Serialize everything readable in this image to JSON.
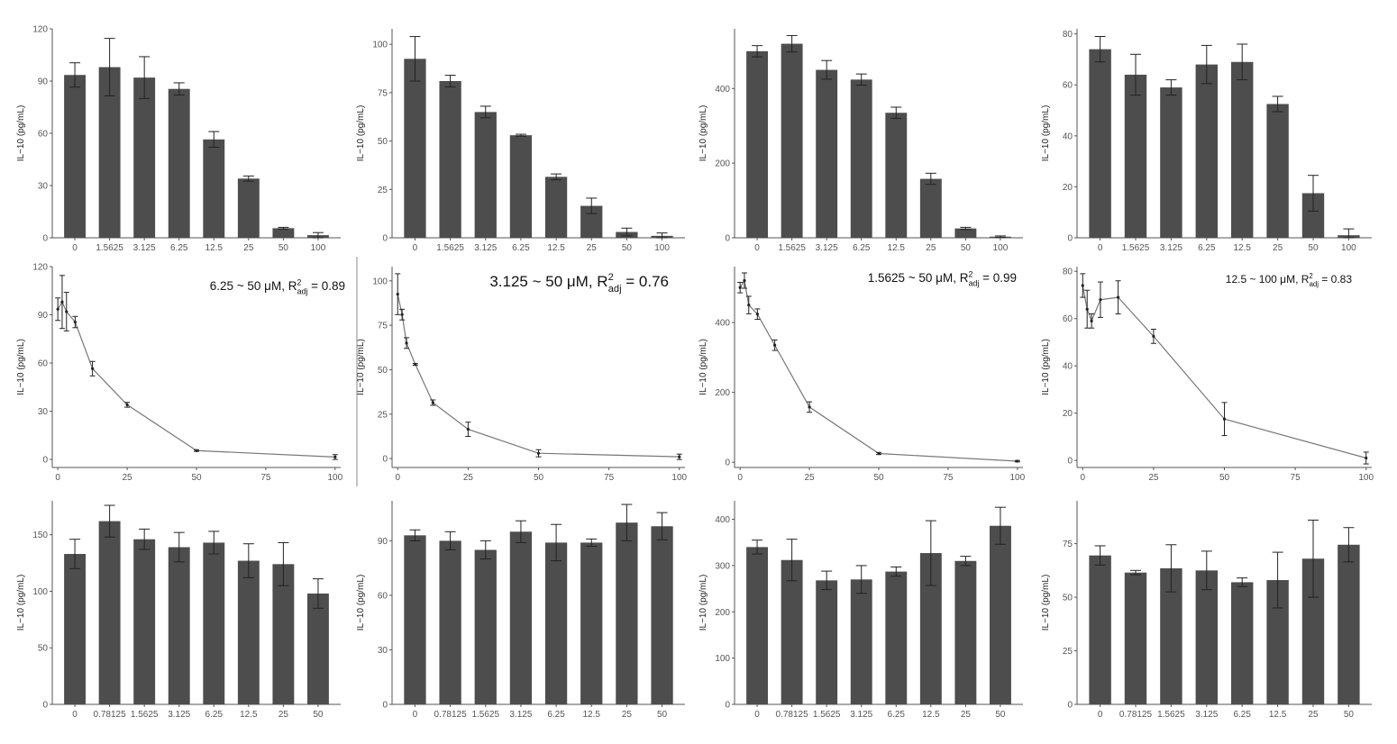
{
  "chart_data": [
    {
      "id": "r1c1",
      "type": "bar",
      "ylabel": "IL−10 (pg/mL)",
      "ylim": [
        0,
        120
      ],
      "yticks": [
        0,
        30,
        60,
        90,
        120
      ],
      "categories": [
        "0",
        "1.5625",
        "3.125",
        "6.25",
        "12.5",
        "25",
        "50",
        "100"
      ],
      "values": [
        93.5,
        98,
        92,
        85.5,
        56.5,
        34,
        5.5,
        1.5
      ],
      "errors": [
        7,
        16.5,
        12,
        3.5,
        4.5,
        1.5,
        0.5,
        1.5
      ]
    },
    {
      "id": "r1c2",
      "type": "bar",
      "ylabel": "IL−10 (pg/mL)",
      "ylim": [
        0,
        108
      ],
      "yticks": [
        0,
        25,
        50,
        75,
        100
      ],
      "categories": [
        "0",
        "1.5625",
        "3.125",
        "6.25",
        "12.5",
        "25",
        "50",
        "100"
      ],
      "values": [
        92.5,
        81,
        65,
        53,
        31.5,
        16.5,
        3,
        1
      ],
      "errors": [
        11.5,
        3,
        3,
        0.5,
        1.5,
        4,
        2,
        1.5
      ]
    },
    {
      "id": "r1c3",
      "type": "bar",
      "ylabel": "IL−10 (pg/mL)",
      "ylim": [
        0,
        560
      ],
      "yticks": [
        0,
        200,
        400
      ],
      "categories": [
        "0",
        "1.5625",
        "3.125",
        "6.25",
        "12.5",
        "25",
        "50",
        "100"
      ],
      "values": [
        500,
        520,
        450,
        424,
        335,
        158,
        25,
        3
      ],
      "errors": [
        15,
        22,
        25,
        15,
        15,
        15,
        3,
        2
      ]
    },
    {
      "id": "r1c4",
      "type": "bar",
      "ylabel": "IL−10 (pg/mL)",
      "ylim": [
        0,
        82
      ],
      "yticks": [
        0,
        20,
        40,
        60,
        80
      ],
      "categories": [
        "0",
        "1.5625",
        "3.125",
        "6.25",
        "12.5",
        "25",
        "50",
        "100"
      ],
      "values": [
        74,
        64,
        59,
        68,
        69,
        52.5,
        17.5,
        1
      ],
      "errors": [
        5,
        8,
        3,
        7.5,
        7,
        3,
        7,
        2.5
      ]
    },
    {
      "id": "r2c1",
      "type": "line",
      "ylabel": "IL−10 (pg/mL)",
      "ylim": [
        -5,
        120
      ],
      "yticks": [
        0,
        30,
        60,
        90,
        120
      ],
      "xlim": [
        -2,
        102
      ],
      "xticks": [
        0,
        25,
        50,
        75,
        100
      ],
      "x": [
        0,
        1.5625,
        3.125,
        6.25,
        12.5,
        25,
        50,
        100
      ],
      "values": [
        93.5,
        98,
        92,
        85.5,
        56.5,
        34,
        5.5,
        1.5
      ],
      "errors": [
        7,
        16.5,
        12,
        3.5,
        4.5,
        1.5,
        0.5,
        1.5
      ],
      "annotation": {
        "range": "6.25 ~ 50 μM, R",
        "sup": "2",
        "sub": "adj",
        "value": " = 0.89"
      }
    },
    {
      "id": "r2c2",
      "type": "line",
      "ylabel": "IL−10 (pg/mL)",
      "ylim": [
        -5,
        108
      ],
      "yticks": [
        0,
        25,
        50,
        75,
        100
      ],
      "xlim": [
        -2,
        102
      ],
      "xticks": [
        0,
        25,
        50,
        75,
        100
      ],
      "x": [
        0,
        1.5625,
        3.125,
        6.25,
        12.5,
        25,
        50,
        100
      ],
      "values": [
        92.5,
        81,
        65,
        53,
        31.5,
        16.5,
        3,
        1
      ],
      "errors": [
        11.5,
        3,
        3,
        0.5,
        1.5,
        4,
        2,
        1.5
      ],
      "annotation": {
        "range": "3.125 ~ 50 μM, R",
        "sup": "2",
        "sub": "adj",
        "value": " = 0.76"
      }
    },
    {
      "id": "r2c3",
      "type": "line",
      "ylabel": "IL−10 (pg/mL)",
      "ylim": [
        -15,
        560
      ],
      "yticks": [
        0,
        200,
        400
      ],
      "xlim": [
        -2,
        102
      ],
      "xticks": [
        0,
        25,
        50,
        75,
        100
      ],
      "x": [
        0,
        1.5625,
        3.125,
        6.25,
        12.5,
        25,
        50,
        100
      ],
      "values": [
        500,
        520,
        450,
        424,
        335,
        158,
        25,
        3
      ],
      "errors": [
        15,
        22,
        25,
        15,
        15,
        15,
        3,
        2
      ],
      "annotation": {
        "range": "1.5625 ~ 50 μM, R",
        "sup": "2",
        "sub": "adj",
        "value": " = 0.99"
      }
    },
    {
      "id": "r2c4",
      "type": "line",
      "ylabel": "IL−10 (pg/mL)",
      "ylim": [
        -3,
        82
      ],
      "yticks": [
        0,
        20,
        40,
        60,
        80
      ],
      "xlim": [
        -2,
        102
      ],
      "xticks": [
        0,
        25,
        50,
        75,
        100
      ],
      "x": [
        0,
        1.5625,
        3.125,
        6.25,
        12.5,
        25,
        50,
        100
      ],
      "values": [
        74,
        64,
        59,
        68,
        69,
        52.5,
        17.5,
        1
      ],
      "errors": [
        5,
        8,
        3,
        7.5,
        7,
        3,
        7,
        2.5
      ],
      "annotation": {
        "range": "12.5 ~ 100 μM, R",
        "sup": "2",
        "sub": "adj",
        "value": " = 0.83"
      }
    },
    {
      "id": "r3c1",
      "type": "bar",
      "ylabel": "IL−10 (pg/mL)",
      "ylim": [
        0,
        180
      ],
      "yticks": [
        0,
        50,
        100,
        150
      ],
      "categories": [
        "0",
        "0.78125",
        "1.5625",
        "3.125",
        "6.25",
        "12.5",
        "25",
        "50"
      ],
      "values": [
        133,
        162,
        146,
        139,
        143,
        127,
        124,
        98
      ],
      "errors": [
        13,
        14,
        9,
        13,
        10,
        15,
        19,
        13
      ]
    },
    {
      "id": "r3c2",
      "type": "bar",
      "ylabel": "IL−10 (pg/mL)",
      "ylim": [
        0,
        112
      ],
      "yticks": [
        0,
        30,
        60,
        90
      ],
      "categories": [
        "0",
        "0.78125",
        "1.5625",
        "3.125",
        "6.25",
        "12.5",
        "25",
        "50"
      ],
      "values": [
        93,
        90,
        85,
        95,
        89,
        89,
        100,
        98
      ],
      "errors": [
        3,
        5,
        5,
        6,
        10,
        2,
        10,
        7.5
      ]
    },
    {
      "id": "r3c3",
      "type": "bar",
      "ylabel": "IL−10 (pg/mL)",
      "ylim": [
        0,
        440
      ],
      "yticks": [
        0,
        100,
        200,
        300,
        400
      ],
      "categories": [
        "0",
        "0.78125",
        "1.5625",
        "3.125",
        "6.25",
        "12.5",
        "25",
        "50"
      ],
      "values": [
        340,
        312,
        268,
        270,
        287,
        327,
        310,
        386
      ],
      "errors": [
        15,
        45,
        20,
        30,
        10,
        70,
        10,
        40
      ]
    },
    {
      "id": "r3c4",
      "type": "bar",
      "ylabel": "IL−10 (pg/mL)",
      "ylim": [
        0,
        95
      ],
      "yticks": [
        0,
        25,
        50,
        75
      ],
      "categories": [
        "0",
        "0.78125",
        "1.5625",
        "3.125",
        "6.25",
        "12.5",
        "25",
        "50"
      ],
      "values": [
        69.5,
        61.5,
        63.5,
        62.5,
        57,
        58,
        68,
        74.5
      ],
      "errors": [
        4.5,
        1,
        11,
        9,
        2,
        13,
        18,
        8
      ]
    }
  ],
  "colors": {
    "bar": "#4d4d4d",
    "line": "#777777",
    "error": "#222222",
    "axis": "#555555",
    "tick_text": "#555555"
  }
}
